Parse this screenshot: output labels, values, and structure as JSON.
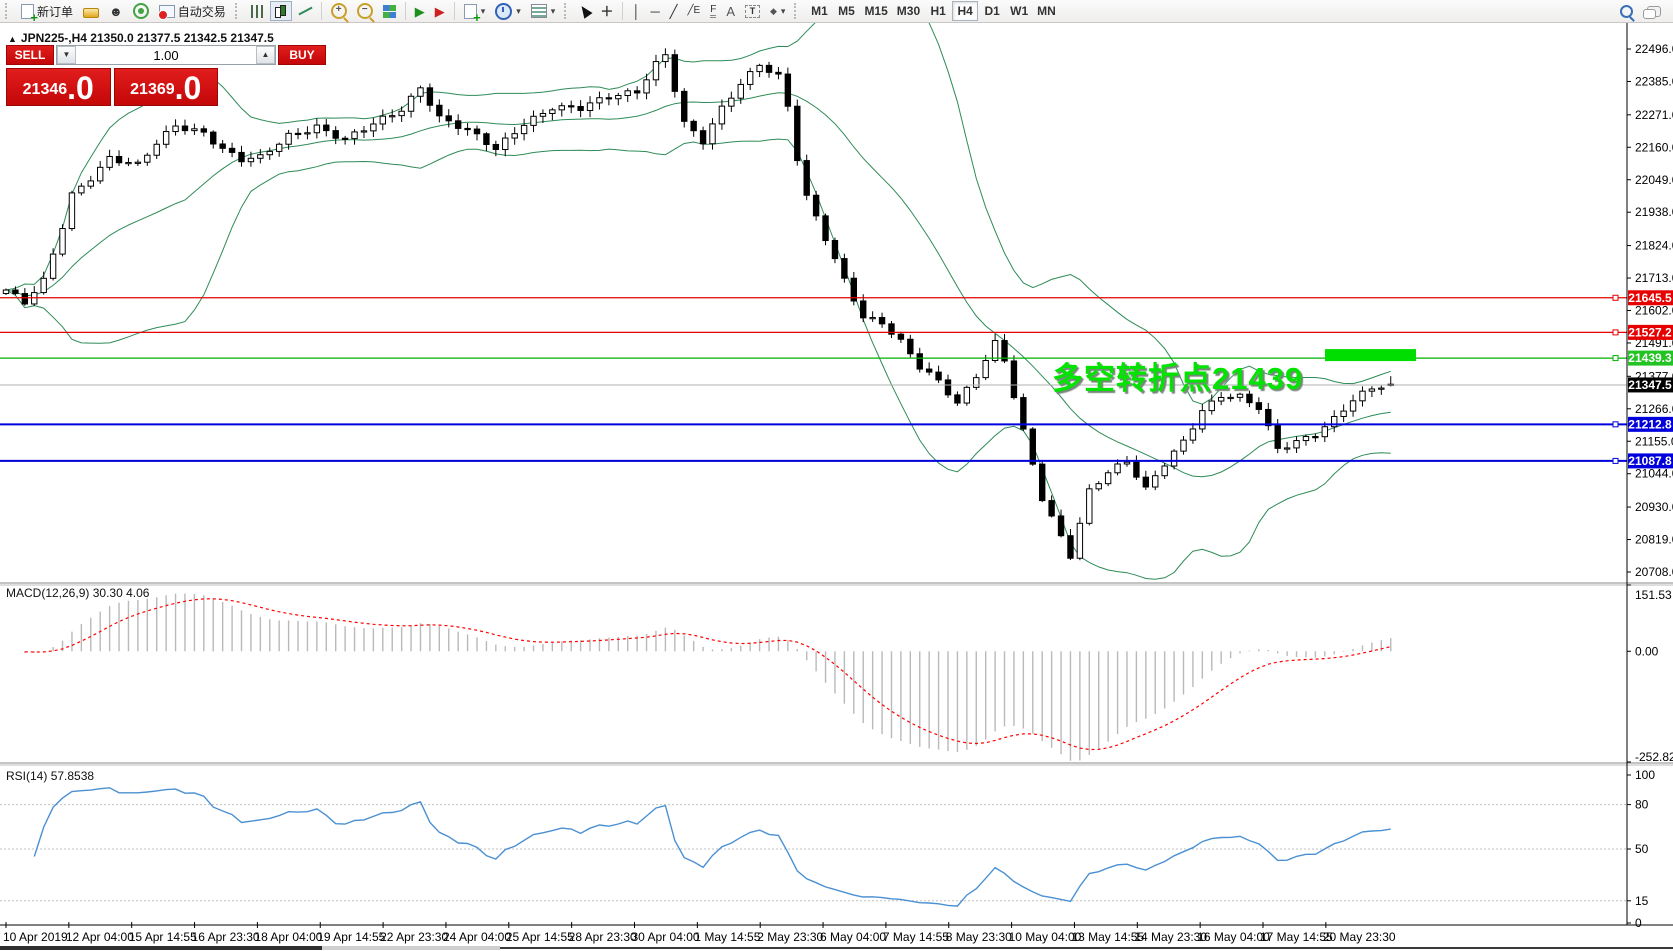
{
  "toolbar": {
    "new_order_label": "新订单",
    "auto_trading_label": "自动交易",
    "timeframes": [
      "M1",
      "M5",
      "M15",
      "M30",
      "H1",
      "H4",
      "D1",
      "W1",
      "MN"
    ],
    "active_timeframe": "H4",
    "line_tools": {
      "vertical": "│",
      "horizontal": "─",
      "trend": "╱",
      "channel": "╱E",
      "fibo": "F",
      "text": "A",
      "label": "T",
      "arrows": "◆"
    }
  },
  "symbol_header": {
    "text": "JPN225-,H4  21350.0 21377.5 21342.5 21347.5"
  },
  "trade_panel": {
    "sell_label": "SELL",
    "buy_label": "BUY",
    "volume": "1.00",
    "sell_price_main": "21346",
    "sell_price_frac": ".0",
    "buy_price_main": "21369",
    "buy_price_frac": ".0",
    "panel_color": "#c90808"
  },
  "annotation": {
    "text": "多空转折点21439",
    "color": "#00e400"
  },
  "chart_data": {
    "type": "candlestick",
    "symbol": "JPN225-",
    "timeframe": "H4",
    "last_ohlc": {
      "open": 21350.0,
      "high": 21377.5,
      "low": 21342.5,
      "close": 21347.5
    },
    "price_axis_ticks": [
      "22496.0",
      "22385.0",
      "22271.0",
      "22160.0",
      "22049.0",
      "21938.0",
      "21824.0",
      "21713.0",
      "21602.0",
      "21491.0",
      "21377.0",
      "21266.0",
      "21155.0",
      "21044.0",
      "20930.0",
      "20819.0",
      "20708.0"
    ],
    "price_axis_range": {
      "top": 22496.0,
      "bottom": 20708.0
    },
    "x_labels": [
      "10 Apr 2019",
      "12 Apr 04:00",
      "15 Apr 14:55",
      "16 Apr 23:30",
      "18 Apr 04:00",
      "19 Apr 14:55",
      "22 Apr 23:30",
      "24 Apr 04:00",
      "25 Apr 14:55",
      "28 Apr 23:30",
      "30 Apr 04:00",
      "1 May 14:55",
      "2 May 23:30",
      "6 May 04:00",
      "7 May 14:55",
      "8 May 23:30",
      "10 May 04:00",
      "13 May 14:55",
      "14 May 23:30",
      "16 May 04:00",
      "17 May 14:55",
      "20 May 23:30"
    ],
    "hlines": [
      {
        "price": 21645.5,
        "color": "red",
        "label": "21645.5"
      },
      {
        "price": 21527.2,
        "color": "red",
        "label": "21527.2"
      },
      {
        "price": 21439.3,
        "color": "green",
        "label": "21439.3"
      },
      {
        "price": 21212.8,
        "color": "blue",
        "label": "21212.8"
      },
      {
        "price": 21087.8,
        "color": "blue",
        "label": "21087.8"
      }
    ],
    "current_price": 21347.5,
    "current_price_label": "21347.5",
    "highlight_rect": {
      "price": 21439.3,
      "color": "#00dd00"
    },
    "colors": {
      "red_line": "#e60000",
      "green_line": "#00b200",
      "blue_line": "#0000dd",
      "band": "#2e8b57",
      "macd_hist": "#b9b9b9",
      "macd_signal": "#ff0000",
      "rsi_line": "#4a90d2",
      "up_candle": "#ffffff",
      "down_candle": "#000000"
    },
    "candle_count": 148,
    "close_anchors": [
      [
        0,
        21672
      ],
      [
        2,
        21625
      ],
      [
        4,
        21698
      ],
      [
        6,
        21890
      ],
      [
        7,
        22000
      ],
      [
        9,
        22060
      ],
      [
        11,
        22125
      ],
      [
        14,
        22095
      ],
      [
        16,
        22170
      ],
      [
        18,
        22235
      ],
      [
        21,
        22215
      ],
      [
        23,
        22155
      ],
      [
        25,
        22115
      ],
      [
        27,
        22120
      ],
      [
        30,
        22200
      ],
      [
        33,
        22235
      ],
      [
        36,
        22185
      ],
      [
        39,
        22235
      ],
      [
        42,
        22290
      ],
      [
        44,
        22370
      ],
      [
        46,
        22265
      ],
      [
        49,
        22215
      ],
      [
        52,
        22150
      ],
      [
        55,
        22245
      ],
      [
        58,
        22300
      ],
      [
        61,
        22290
      ],
      [
        64,
        22330
      ],
      [
        67,
        22355
      ],
      [
        69,
        22450
      ],
      [
        70,
        22480
      ],
      [
        72,
        22240
      ],
      [
        74,
        22175
      ],
      [
        76,
        22290
      ],
      [
        78,
        22380
      ],
      [
        80,
        22450
      ],
      [
        82,
        22405
      ],
      [
        83,
        22300
      ],
      [
        84,
        22120
      ],
      [
        85,
        21985
      ],
      [
        87,
        21845
      ],
      [
        89,
        21705
      ],
      [
        91,
        21585
      ],
      [
        93,
        21565
      ],
      [
        95,
        21495
      ],
      [
        97,
        21405
      ],
      [
        99,
        21355
      ],
      [
        101,
        21285
      ],
      [
        103,
        21385
      ],
      [
        105,
        21495
      ],
      [
        106,
        21435
      ],
      [
        108,
        21185
      ],
      [
        110,
        20955
      ],
      [
        112,
        20825
      ],
      [
        113,
        20765
      ],
      [
        115,
        20990
      ],
      [
        117,
        21055
      ],
      [
        119,
        21085
      ],
      [
        121,
        20985
      ],
      [
        123,
        21075
      ],
      [
        125,
        21155
      ],
      [
        127,
        21265
      ],
      [
        129,
        21315
      ],
      [
        131,
        21305
      ],
      [
        133,
        21265
      ],
      [
        135,
        21125
      ],
      [
        137,
        21155
      ],
      [
        139,
        21185
      ],
      [
        141,
        21235
      ],
      [
        143,
        21295
      ],
      [
        145,
        21330
      ],
      [
        147,
        21347.5
      ]
    ],
    "bollinger": {
      "period": 20,
      "deviation": 2
    },
    "macd": {
      "label": "MACD(12,26,9)",
      "main_value": "30.30",
      "signal_value": "4.06",
      "axis_labels": [
        "151.53",
        "0.00",
        "-252.82"
      ],
      "axis_values": [
        151.53,
        0.0,
        -252.82
      ]
    },
    "rsi": {
      "label": "RSI(14)",
      "value": "57.8538",
      "axis_labels": [
        "100",
        "80",
        "50",
        "15",
        "0"
      ],
      "axis_values": [
        100,
        80,
        50,
        15,
        0
      ],
      "levels": [
        80,
        50,
        15
      ]
    }
  }
}
